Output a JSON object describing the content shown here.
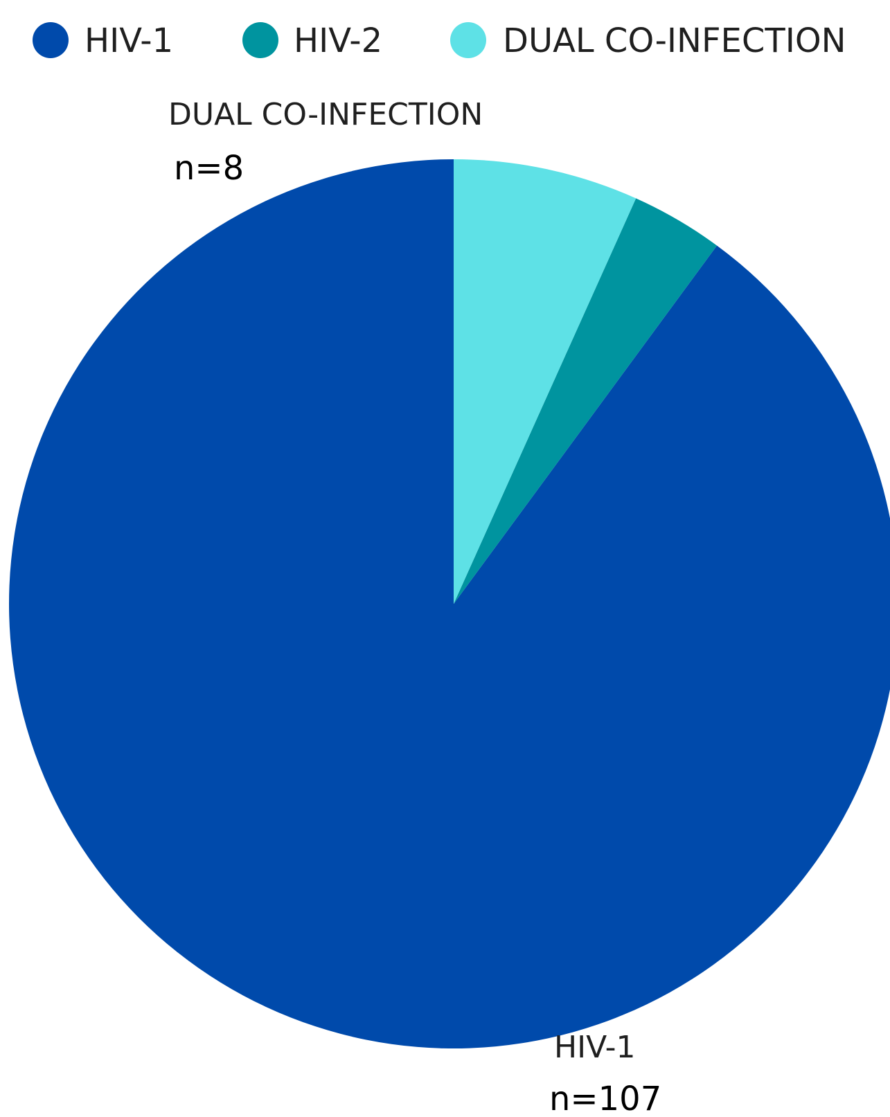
{
  "chart_data": {
    "type": "pie",
    "start_angle_deg": 0,
    "direction": "counterclockwise",
    "slices": [
      {
        "label": "HIV-1",
        "value": 107,
        "color": "#004aab"
      },
      {
        "label": "HIV-2",
        "value": 4,
        "color": "#00949f"
      },
      {
        "label": "DUAL CO-INFECTION",
        "value": 8,
        "color": "#5ee1e6"
      }
    ],
    "legend": {
      "position": "top",
      "items": [
        {
          "label": "HIV-1",
          "color": "#004aab"
        },
        {
          "label": "HIV-2",
          "color": "#00949f"
        },
        {
          "label": "DUAL CO-INFECTION",
          "color": "#5ee1e6"
        }
      ]
    },
    "annotations": [
      {
        "category": "DUAL CO-INFECTION",
        "text": "n=8"
      },
      {
        "category": "HIV-1",
        "text": "n=107"
      }
    ]
  }
}
